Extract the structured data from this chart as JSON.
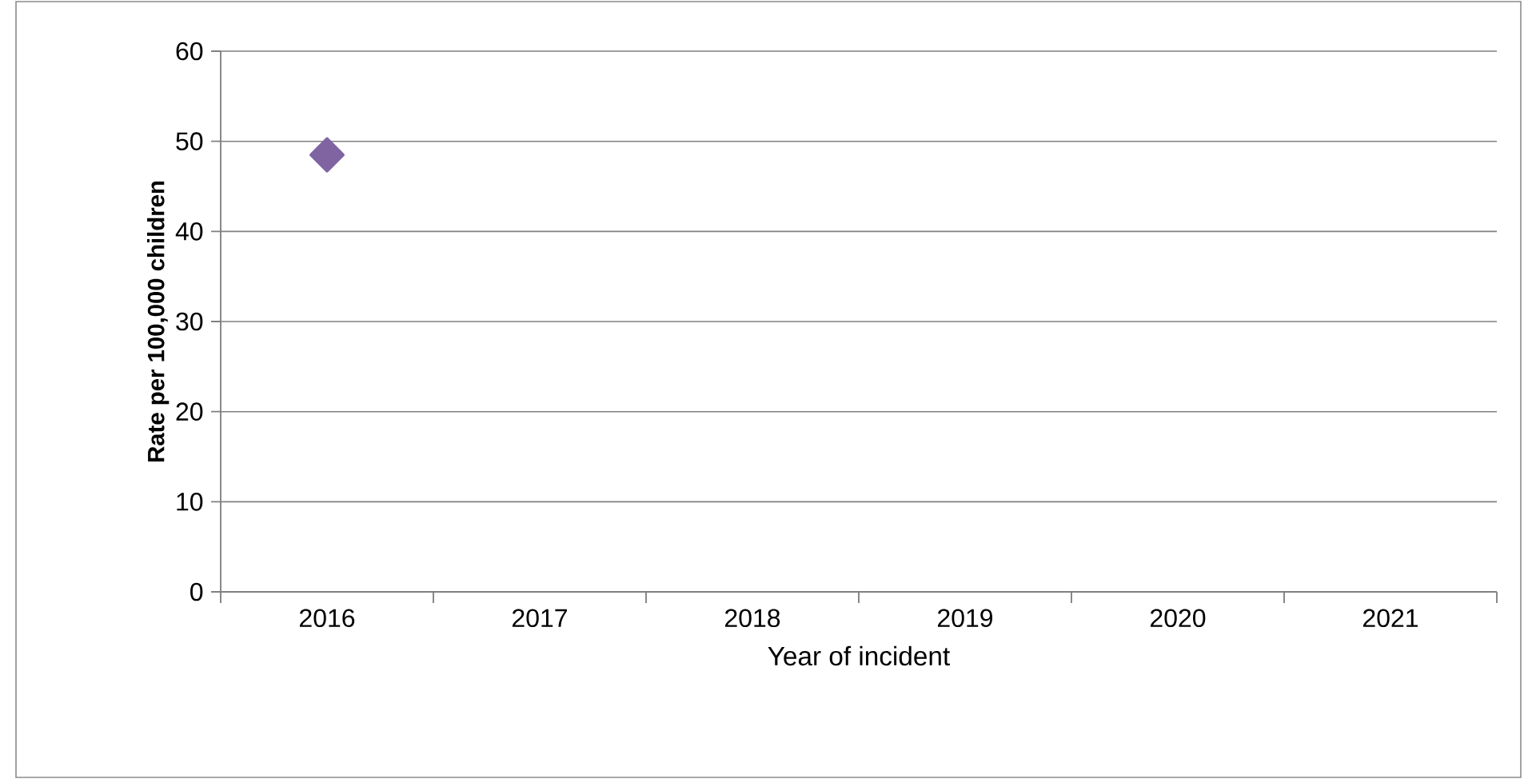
{
  "chart_data": {
    "type": "line",
    "xlabel": "Year of incident",
    "ylabel": "Rate per 100,000 children",
    "categories": [
      "2016",
      "2017",
      "2018",
      "2019",
      "2020",
      "2021"
    ],
    "series": [
      {
        "color": "#8064a2",
        "values": [
          48.5,
          null,
          null,
          null,
          null,
          null
        ]
      }
    ],
    "ylim": [
      0,
      60
    ],
    "yticks": [
      0,
      10,
      20,
      30,
      40,
      50,
      60
    ],
    "grid": "y",
    "marker": "diamond"
  }
}
